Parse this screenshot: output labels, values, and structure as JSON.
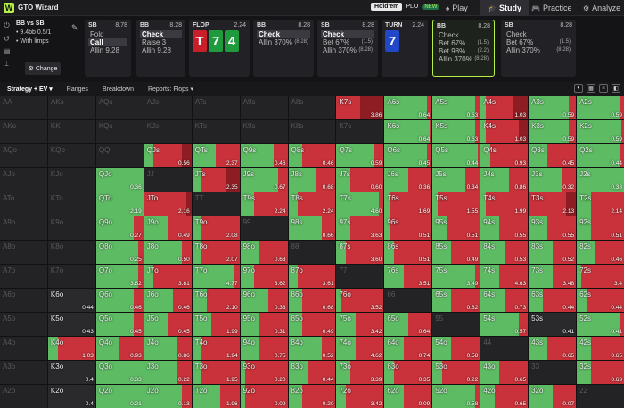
{
  "app": {
    "brand": "GTO Wizard",
    "game_toggle": {
      "on": "Hold'em",
      "off": "PLO",
      "badge": "NEW"
    }
  },
  "nav": [
    {
      "label": "Play",
      "icon": "♠"
    },
    {
      "label": "Study",
      "icon": "🎓"
    },
    {
      "label": "Practice",
      "icon": "🎮"
    },
    {
      "label": "Analyze",
      "icon": "⚙"
    }
  ],
  "spot": {
    "title": "BB vs SB",
    "line1": "• 9.4bb 0.5/1",
    "line2": "• With limps",
    "change": "Change"
  },
  "panels": [
    {
      "pos": "SB",
      "stack": "8.78",
      "opts": [
        {
          "l": "Fold",
          "r": ""
        },
        {
          "l": "Call",
          "r": "",
          "sel": true
        },
        {
          "l": "Allin 9.28",
          "r": ""
        }
      ]
    },
    {
      "pos": "BB",
      "stack": "8.28",
      "opts": [
        {
          "l": "Check",
          "r": "",
          "sel": true
        },
        {
          "l": "Raise 3",
          "r": ""
        },
        {
          "l": "Allin 9.28",
          "r": ""
        }
      ]
    },
    {
      "pos": "FLOP",
      "stack": "2.24",
      "cards": [
        {
          "r": "T",
          "c": "red"
        },
        {
          "r": "7",
          "c": "green"
        },
        {
          "r": "4",
          "c": "green"
        }
      ]
    },
    {
      "pos": "BB",
      "stack": "8.28",
      "opts": [
        {
          "l": "Check",
          "r": "",
          "sel": true
        },
        {
          "l": "Allin 370%",
          "r": "(8.28)"
        }
      ]
    },
    {
      "pos": "SB",
      "stack": "8.28",
      "opts": [
        {
          "l": "Check",
          "r": "",
          "sel": true
        },
        {
          "l": "Bet 67%",
          "r": "(1.5)"
        },
        {
          "l": "Allin 370%",
          "r": "(8.28)"
        }
      ]
    },
    {
      "pos": "TURN",
      "stack": "2.24",
      "cards": [
        {
          "r": "7",
          "c": "blue"
        }
      ]
    },
    {
      "pos": "BB",
      "stack": "8.28",
      "opts": [
        {
          "l": "Check",
          "r": ""
        },
        {
          "l": "Bet 67%",
          "r": "(1.5)"
        },
        {
          "l": "Bet 98%",
          "r": "(2.2)"
        },
        {
          "l": "Allin 370%",
          "r": "(8.28)"
        }
      ],
      "hl": true
    },
    {
      "pos": "SB",
      "stack": "8.28",
      "opts": [
        {
          "l": "Check",
          "r": ""
        },
        {
          "l": "Bet 67%",
          "r": "(1.5)"
        },
        {
          "l": "Allin 370%",
          "r": "(8.28)"
        }
      ]
    }
  ],
  "toolbar": [
    "Strategy + EV",
    "Ranges",
    "Breakdown",
    "Reports: Flops"
  ],
  "colors": {
    "check": "#5dbb63",
    "bet": "#c9323a",
    "allin": "#8e1d23",
    "empty": "#232326"
  },
  "grid": [
    [
      [
        "AA"
      ],
      [
        "AKs"
      ],
      [
        "AQs"
      ],
      [
        "AJs"
      ],
      [
        "ATs"
      ],
      [
        "A9s"
      ],
      [
        "A8s"
      ],
      [
        "K7s",
        "3.86",
        [
          0,
          0.5,
          0.5
        ]
      ],
      [
        "A6s",
        "0.64",
        [
          0.9,
          0.1,
          0
        ]
      ],
      [
        "A5s",
        "0.63",
        [
          0.9,
          0.1,
          0
        ]
      ],
      [
        "A4s",
        "1.03",
        [
          0.1,
          0.6,
          0.3
        ]
      ],
      [
        "A3s",
        "0.59",
        [
          0.85,
          0.15,
          0
        ]
      ],
      [
        "A2s",
        "0.59",
        [
          0.9,
          0.1,
          0
        ]
      ]
    ],
    [
      [
        "AKo"
      ],
      [
        "KK"
      ],
      [
        "KQs"
      ],
      [
        "KJs"
      ],
      [
        "KTs"
      ],
      [
        "K9s"
      ],
      [
        "K8s"
      ],
      [
        "K7s"
      ],
      [
        "K6s",
        "0.64",
        [
          0.95,
          0.05,
          0
        ]
      ],
      [
        "K5s",
        "0.63",
        [
          0.9,
          0.1,
          0
        ]
      ],
      [
        "K4s",
        "1.03",
        [
          0.1,
          0.7,
          0.2
        ]
      ],
      [
        "K3s",
        "0.59",
        [
          0.85,
          0.15,
          0
        ]
      ],
      [
        "K2s",
        "0.59",
        [
          0.95,
          0.05,
          0
        ]
      ]
    ],
    [
      [
        "AQo"
      ],
      [
        "KQo"
      ],
      [
        "QQ"
      ],
      [
        "QJs",
        "0.56",
        [
          0.2,
          0.6,
          0.2
        ]
      ],
      [
        "QTs",
        "2.37",
        [
          0.5,
          0.5,
          0
        ]
      ],
      [
        "Q9s",
        "0.46",
        [
          0.7,
          0.3,
          0
        ]
      ],
      [
        "Q8s",
        "0.46",
        [
          0.3,
          0.7,
          0
        ]
      ],
      [
        "Q7s",
        "0.59",
        [
          0.8,
          0.2,
          0
        ]
      ],
      [
        "Q6s",
        "0.45",
        [
          0.9,
          0.1,
          0
        ]
      ],
      [
        "Q5s",
        "0.44",
        [
          0.95,
          0.05,
          0
        ]
      ],
      [
        "Q4s",
        "0.93",
        [
          0.2,
          0.8,
          0
        ]
      ],
      [
        "Q3s",
        "0.45",
        [
          0.4,
          0.6,
          0
        ]
      ],
      [
        "Q2s",
        "0.44",
        [
          0.9,
          0.1,
          0
        ]
      ]
    ],
    [
      [
        "AJo"
      ],
      [
        "KJo"
      ],
      [
        "QJo",
        "0.36",
        [
          1,
          0,
          0
        ]
      ],
      [
        "JJ"
      ],
      [
        "JTs",
        "2.35",
        [
          0.2,
          0.5,
          0.3
        ]
      ],
      [
        "J9s",
        "0.67",
        [
          0.8,
          0.2,
          0
        ]
      ],
      [
        "J8s",
        "0.68",
        [
          0.6,
          0.4,
          0
        ]
      ],
      [
        "J7s",
        "0.60",
        [
          0.3,
          0.7,
          0
        ]
      ],
      [
        "J6s",
        "0.36",
        [
          0.5,
          0.5,
          0
        ]
      ],
      [
        "J5s",
        "0.34",
        [
          0.7,
          0.3,
          0
        ]
      ],
      [
        "J4s",
        "0.86",
        [
          0.6,
          0.4,
          0
        ]
      ],
      [
        "J3s",
        "0.32",
        [
          0.7,
          0.3,
          0
        ]
      ],
      [
        "J2s",
        "0.33",
        [
          1,
          0,
          0
        ]
      ]
    ],
    [
      [
        "ATo"
      ],
      [
        "KTo"
      ],
      [
        "QTo",
        "2.19",
        [
          1,
          0,
          0
        ]
      ],
      [
        "JTo",
        "2.16",
        [
          0,
          0.9,
          0.1
        ]
      ],
      [
        "TT"
      ],
      [
        "T9s",
        "2.24",
        [
          0.3,
          0.7,
          0
        ]
      ],
      [
        "T8s",
        "2.24",
        [
          0.2,
          0.8,
          0
        ]
      ],
      [
        "T7s",
        "4.60",
        [
          0.9,
          0.1,
          0
        ]
      ],
      [
        "T6s",
        "1.69",
        [
          0.1,
          0.9,
          0
        ]
      ],
      [
        "T5s",
        "1.55",
        [
          0.1,
          0.9,
          0
        ]
      ],
      [
        "T4s",
        "1.99",
        [
          0.1,
          0.9,
          0
        ]
      ],
      [
        "T3s",
        "2.13",
        [
          0,
          0.8,
          0.2
        ]
      ],
      [
        "T2s",
        "2.14",
        [
          0.3,
          0.7,
          0
        ]
      ]
    ],
    [
      [
        "A9o"
      ],
      [
        "K9o"
      ],
      [
        "Q9o",
        "0.27",
        [
          0.8,
          0.2,
          0
        ]
      ],
      [
        "J9o",
        "0.49",
        [
          0.5,
          0.5,
          0
        ]
      ],
      [
        "T9o",
        "2.08",
        [
          0.2,
          0.8,
          0
        ]
      ],
      [
        "99"
      ],
      [
        "98s",
        "0.66",
        [
          0.7,
          0.3,
          0
        ]
      ],
      [
        "97s",
        "3.63",
        [
          0.3,
          0.7,
          0
        ]
      ],
      [
        "96s",
        "0.51",
        [
          0.1,
          0.9,
          0
        ]
      ],
      [
        "95s",
        "0.51",
        [
          0.3,
          0.7,
          0
        ]
      ],
      [
        "94s",
        "0.55",
        [
          0.4,
          0.6,
          0
        ]
      ],
      [
        "93s",
        "0.55",
        [
          0.4,
          0.6,
          0
        ]
      ],
      [
        "92s",
        "0.51",
        [
          0.3,
          0.7,
          0
        ]
      ]
    ],
    [
      [
        "A8o"
      ],
      [
        "K8o"
      ],
      [
        "Q8o",
        "0.25",
        [
          0.9,
          0.1,
          0
        ]
      ],
      [
        "J8o",
        "0.50",
        [
          0.8,
          0.2,
          0
        ]
      ],
      [
        "T8o",
        "2.07",
        [
          0.2,
          0.8,
          0
        ]
      ],
      [
        "98o",
        "0.63",
        [
          0.4,
          0.6,
          0
        ]
      ],
      [
        "88"
      ],
      [
        "87s",
        "3.60",
        [
          0.2,
          0.8,
          0
        ]
      ],
      [
        "86s",
        "0.51",
        [
          0.2,
          0.8,
          0
        ]
      ],
      [
        "85s",
        "0.49",
        [
          0.4,
          0.6,
          0
        ]
      ],
      [
        "84s",
        "0.53",
        [
          0.5,
          0.5,
          0
        ]
      ],
      [
        "83s",
        "0.52",
        [
          0.5,
          0.5,
          0
        ]
      ],
      [
        "82s",
        "0.46",
        [
          0.4,
          0.6,
          0
        ]
      ]
    ],
    [
      [
        "A7o"
      ],
      [
        "K7o"
      ],
      [
        "Q7o",
        "3.82",
        [
          0.9,
          0.1,
          0
        ]
      ],
      [
        "J7o",
        "3.81",
        [
          0.2,
          0.8,
          0
        ]
      ],
      [
        "T7o",
        "4.77",
        [
          0.9,
          0.1,
          0
        ]
      ],
      [
        "97o",
        "3.62",
        [
          0.3,
          0.7,
          0
        ]
      ],
      [
        "87o",
        "3.61",
        [
          0.2,
          0.8,
          0
        ]
      ],
      [
        "77"
      ],
      [
        "76s",
        "3.51",
        [
          0.4,
          0.6,
          0
        ]
      ],
      [
        "75s",
        "3.49",
        [
          0.9,
          0.1,
          0
        ]
      ],
      [
        "74s",
        "4.63",
        [
          0.4,
          0.6,
          0
        ]
      ],
      [
        "73s",
        "3.48",
        [
          0.5,
          0.5,
          0
        ]
      ],
      [
        "72s",
        "3.4",
        [
          0.1,
          0.9,
          0
        ]
      ]
    ],
    [
      [
        "A6o"
      ],
      [
        "K6o",
        "0.44",
        [
          0,
          0,
          0
        ]
      ],
      [
        "Q6o",
        "0.46",
        [
          0.8,
          0.2,
          0
        ]
      ],
      [
        "J6o",
        "0.46",
        [
          0.6,
          0.4,
          0
        ]
      ],
      [
        "T6o",
        "2.10",
        [
          0.3,
          0.7,
          0
        ]
      ],
      [
        "96o",
        "0.33",
        [
          0.6,
          0.4,
          0
        ]
      ],
      [
        "86o",
        "0.68",
        [
          0.3,
          0.7,
          0
        ]
      ],
      [
        "76o",
        "3.52",
        [
          0.1,
          0.9,
          0
        ]
      ],
      [
        "66"
      ],
      [
        "65s",
        "0.82",
        [
          0.4,
          0.6,
          0
        ]
      ],
      [
        "64s",
        "0.73",
        [
          0.5,
          0.5,
          0
        ]
      ],
      [
        "63s",
        "0.44",
        [
          0.3,
          0.7,
          0
        ]
      ],
      [
        "62s",
        "0.44",
        [
          0.2,
          0.8,
          0
        ]
      ]
    ],
    [
      [
        "A5o"
      ],
      [
        "K5o",
        "0.43",
        [
          0,
          0,
          0
        ]
      ],
      [
        "Q5o",
        "0.45",
        [
          0.8,
          0.2,
          0
        ]
      ],
      [
        "J5o",
        "0.45",
        [
          0.5,
          0.5,
          0
        ]
      ],
      [
        "T5o",
        "1.99",
        [
          0.4,
          0.6,
          0
        ]
      ],
      [
        "95o",
        "0.31",
        [
          0.4,
          0.6,
          0
        ]
      ],
      [
        "85o",
        "0.49",
        [
          0.3,
          0.7,
          0
        ]
      ],
      [
        "75o",
        "3.42",
        [
          0.4,
          0.6,
          0
        ]
      ],
      [
        "65o",
        "0.64",
        [
          0.5,
          0.5,
          0
        ]
      ],
      [
        "55"
      ],
      [
        "54s",
        "0.57",
        [
          0.8,
          0.2,
          0
        ]
      ],
      [
        "53s",
        "0.41",
        [
          0,
          0,
          0
        ]
      ],
      [
        "52s",
        "0.41",
        [
          0.9,
          0.1,
          0
        ]
      ]
    ],
    [
      [
        "A4o"
      ],
      [
        "K4o",
        "1.03",
        [
          0.2,
          0.8,
          0
        ]
      ],
      [
        "Q4o",
        "0.93",
        [
          0.5,
          0.5,
          0
        ]
      ],
      [
        "J4o",
        "0.86",
        [
          0.7,
          0.3,
          0
        ]
      ],
      [
        "T4o",
        "1.94",
        [
          0.2,
          0.8,
          0
        ]
      ],
      [
        "94o",
        "0.75",
        [
          0.4,
          0.6,
          0
        ]
      ],
      [
        "84o",
        "0.52",
        [
          0.7,
          0.3,
          0
        ]
      ],
      [
        "74o",
        "4.62",
        [
          0.4,
          0.6,
          0
        ]
      ],
      [
        "64o",
        "0.74",
        [
          0.4,
          0.6,
          0
        ]
      ],
      [
        "54o",
        "0.58",
        [
          0.4,
          0.6,
          0
        ]
      ],
      [
        "44"
      ],
      [
        "43s",
        "0.65",
        [
          0.4,
          0.6,
          0
        ]
      ],
      [
        "42s",
        "0.65",
        [
          0.3,
          0.7,
          0
        ]
      ]
    ],
    [
      [
        "A3o"
      ],
      [
        "K3o",
        "0.4",
        [
          0,
          0,
          0
        ]
      ],
      [
        "Q3o",
        "0.33",
        [
          1,
          0,
          0
        ]
      ],
      [
        "J3o",
        "0.22",
        [
          0.7,
          0.3,
          0
        ]
      ],
      [
        "T3o",
        "1.95",
        [
          0.2,
          0.8,
          0
        ]
      ],
      [
        "93o",
        "0.20",
        [
          0.1,
          0.9,
          0
        ]
      ],
      [
        "83o",
        "0.44",
        [
          0.4,
          0.6,
          0
        ]
      ],
      [
        "73o",
        "3.39",
        [
          0.3,
          0.7,
          0
        ]
      ],
      [
        "63o",
        "0.35",
        [
          0.2,
          0.8,
          0
        ]
      ],
      [
        "53o",
        "0.22",
        [
          0.2,
          0.8,
          0
        ]
      ],
      [
        "43o",
        "0.65",
        [
          0.4,
          0.6,
          0
        ]
      ],
      [
        "33"
      ],
      [
        "32s",
        "0.63",
        [
          0.3,
          0.7,
          0
        ]
      ]
    ],
    [
      [
        "A2o"
      ],
      [
        "K2o",
        "0.4",
        [
          0,
          0,
          0
        ]
      ],
      [
        "Q2o",
        "0.21",
        [
          1,
          0,
          0
        ]
      ],
      [
        "J2o",
        "0.13",
        [
          0.8,
          0.2,
          0
        ]
      ],
      [
        "T2o",
        "1.96",
        [
          0.6,
          0.4,
          0
        ]
      ],
      [
        "92o",
        "0.09",
        [
          0.1,
          0.9,
          0
        ]
      ],
      [
        "82o",
        "0.20",
        [
          0.3,
          0.7,
          0
        ]
      ],
      [
        "72o",
        "3.42",
        [
          0.2,
          0.8,
          0
        ]
      ],
      [
        "62o",
        "0.09",
        [
          0.4,
          0.6,
          0
        ]
      ],
      [
        "52o",
        "0.58",
        [
          0.9,
          0.1,
          0
        ]
      ],
      [
        "42o",
        "0.65",
        [
          0.3,
          0.7,
          0
        ]
      ],
      [
        "32o",
        "0.07",
        [
          0.5,
          0.5,
          0
        ]
      ],
      [
        "22"
      ]
    ]
  ]
}
